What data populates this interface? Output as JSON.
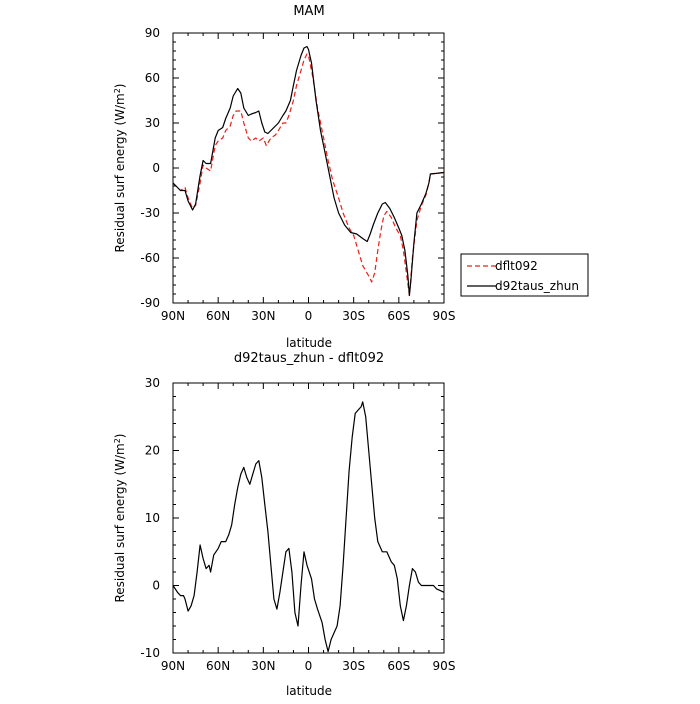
{
  "chart_data": [
    {
      "type": "line",
      "title": "MAM",
      "xlabel": "latitude",
      "ylabel": "Residual surf energy (W/m²)",
      "ylabel_main": "Residual surf energy (W/m",
      "ylabel_sup": "2",
      "ylabel_end": ")",
      "xlim": [
        90,
        -90
      ],
      "ylim": [
        -90,
        90
      ],
      "x_ticks": [
        90,
        60,
        30,
        0,
        -30,
        -60,
        -90
      ],
      "x_tick_labels": [
        "90N",
        "60N",
        "30N",
        "0",
        "30S",
        "60S",
        "90S"
      ],
      "y_ticks": [
        -90,
        -60,
        -30,
        0,
        30,
        60,
        90
      ],
      "y_tick_labels": [
        "-90",
        "-60",
        "-30",
        "0",
        "30",
        "60",
        "90"
      ],
      "legend_position": "right",
      "series": [
        {
          "name": "dflt092",
          "color": "#e8201a",
          "dash": "dashed",
          "points": [
            [
              90,
              -10
            ],
            [
              85,
              -15
            ],
            [
              82,
              -13
            ],
            [
              80,
              -20
            ],
            [
              77,
              -27
            ],
            [
              75,
              -25
            ],
            [
              72,
              -10
            ],
            [
              70,
              2
            ],
            [
              68,
              0
            ],
            [
              65,
              -2
            ],
            [
              62,
              15
            ],
            [
              60,
              18
            ],
            [
              57,
              20
            ],
            [
              55,
              25
            ],
            [
              52,
              28
            ],
            [
              50,
              35
            ],
            [
              48,
              38
            ],
            [
              45,
              38
            ],
            [
              43,
              30
            ],
            [
              40,
              20
            ],
            [
              38,
              18
            ],
            [
              35,
              20
            ],
            [
              33,
              18
            ],
            [
              30,
              20
            ],
            [
              28,
              15
            ],
            [
              25,
              20
            ],
            [
              22,
              22
            ],
            [
              20,
              25
            ],
            [
              17,
              30
            ],
            [
              15,
              30
            ],
            [
              13,
              35
            ],
            [
              10,
              45
            ],
            [
              8,
              55
            ],
            [
              5,
              65
            ],
            [
              3,
              72
            ],
            [
              1,
              76
            ],
            [
              0,
              75
            ],
            [
              -3,
              60
            ],
            [
              -6,
              40
            ],
            [
              -10,
              20
            ],
            [
              -13,
              5
            ],
            [
              -16,
              -8
            ],
            [
              -20,
              -20
            ],
            [
              -23,
              -30
            ],
            [
              -27,
              -40
            ],
            [
              -30,
              -45
            ],
            [
              -33,
              -55
            ],
            [
              -36,
              -65
            ],
            [
              -40,
              -72
            ],
            [
              -42,
              -76
            ],
            [
              -44,
              -70
            ],
            [
              -46,
              -55
            ],
            [
              -48,
              -42
            ],
            [
              -50,
              -32
            ],
            [
              -52,
              -29
            ],
            [
              -55,
              -33
            ],
            [
              -58,
              -40
            ],
            [
              -61,
              -45
            ],
            [
              -63,
              -55
            ],
            [
              -65,
              -70
            ],
            [
              -67,
              -85
            ],
            [
              -69,
              -60
            ],
            [
              -72,
              -35
            ],
            [
              -75,
              -25
            ],
            [
              -78,
              -18
            ],
            [
              -80,
              -10
            ],
            [
              -81,
              -4
            ],
            [
              -90,
              -3
            ]
          ]
        },
        {
          "name": "d92taus_zhun",
          "color": "#000000",
          "dash": "solid",
          "points": [
            [
              90,
              -10
            ],
            [
              87,
              -13
            ],
            [
              85,
              -15
            ],
            [
              82,
              -15
            ],
            [
              80,
              -22
            ],
            [
              77,
              -28
            ],
            [
              75,
              -24
            ],
            [
              72,
              -5
            ],
            [
              70,
              5
            ],
            [
              68,
              3
            ],
            [
              65,
              3
            ],
            [
              62,
              20
            ],
            [
              60,
              25
            ],
            [
              57,
              27
            ],
            [
              55,
              33
            ],
            [
              52,
              40
            ],
            [
              50,
              48
            ],
            [
              47,
              53
            ],
            [
              45,
              50
            ],
            [
              43,
              40
            ],
            [
              40,
              35
            ],
            [
              38,
              36
            ],
            [
              35,
              37
            ],
            [
              33,
              38
            ],
            [
              31,
              30
            ],
            [
              29,
              24
            ],
            [
              27,
              23
            ],
            [
              25,
              25
            ],
            [
              22,
              28
            ],
            [
              20,
              30
            ],
            [
              17,
              35
            ],
            [
              15,
              38
            ],
            [
              12,
              45
            ],
            [
              10,
              55
            ],
            [
              8,
              65
            ],
            [
              5,
              75
            ],
            [
              3,
              80
            ],
            [
              1,
              81
            ],
            [
              0,
              79
            ],
            [
              -2,
              70
            ],
            [
              -5,
              45
            ],
            [
              -8,
              25
            ],
            [
              -11,
              10
            ],
            [
              -14,
              -5
            ],
            [
              -17,
              -20
            ],
            [
              -20,
              -30
            ],
            [
              -24,
              -38
            ],
            [
              -28,
              -43
            ],
            [
              -32,
              -44
            ],
            [
              -36,
              -47
            ],
            [
              -39,
              -49
            ],
            [
              -41,
              -44
            ],
            [
              -43,
              -38
            ],
            [
              -46,
              -30
            ],
            [
              -49,
              -24
            ],
            [
              -51,
              -23
            ],
            [
              -54,
              -27
            ],
            [
              -57,
              -33
            ],
            [
              -60,
              -40
            ],
            [
              -62,
              -45
            ],
            [
              -64,
              -55
            ],
            [
              -66,
              -72
            ],
            [
              -67,
              -85
            ],
            [
              -68,
              -75
            ],
            [
              -70,
              -50
            ],
            [
              -72,
              -30
            ],
            [
              -75,
              -24
            ],
            [
              -78,
              -17
            ],
            [
              -80,
              -10
            ],
            [
              -81,
              -4
            ],
            [
              -90,
              -3
            ]
          ]
        }
      ]
    },
    {
      "type": "line",
      "title": "d92taus_zhun - dflt092",
      "xlabel": "latitude",
      "ylabel": "Residual surf energy (W/m²)",
      "ylabel_main": "Residual surf energy (W/m",
      "ylabel_sup": "2",
      "ylabel_end": ")",
      "xlim": [
        90,
        -90
      ],
      "ylim": [
        -10,
        30
      ],
      "x_ticks": [
        90,
        60,
        30,
        0,
        -30,
        -60,
        -90
      ],
      "x_tick_labels": [
        "90N",
        "60N",
        "30N",
        "0",
        "30S",
        "60S",
        "90S"
      ],
      "y_ticks": [
        -10,
        0,
        10,
        20,
        30
      ],
      "y_tick_labels": [
        "-10",
        "0",
        "10",
        "20",
        "30"
      ],
      "series": [
        {
          "color": "#000000",
          "dash": "solid",
          "points": [
            [
              90,
              0
            ],
            [
              87,
              -1
            ],
            [
              85,
              -1.5
            ],
            [
              83,
              -1.5
            ],
            [
              82,
              -2
            ],
            [
              80,
              -3.8
            ],
            [
              78,
              -3
            ],
            [
              76,
              -1.5
            ],
            [
              74,
              2
            ],
            [
              72,
              6
            ],
            [
              70,
              4
            ],
            [
              68,
              2.5
            ],
            [
              66,
              3
            ],
            [
              65,
              2
            ],
            [
              63,
              4.5
            ],
            [
              60,
              5.5
            ],
            [
              58,
              6.5
            ],
            [
              55,
              6.5
            ],
            [
              53,
              7.5
            ],
            [
              51,
              9
            ],
            [
              49,
              12
            ],
            [
              47,
              14.5
            ],
            [
              45,
              16.5
            ],
            [
              43,
              17.5
            ],
            [
              41,
              16
            ],
            [
              39,
              15
            ],
            [
              37,
              16.5
            ],
            [
              35,
              18
            ],
            [
              33,
              18.5
            ],
            [
              31,
              16
            ],
            [
              29,
              12
            ],
            [
              27,
              8
            ],
            [
              25,
              3
            ],
            [
              23,
              -2
            ],
            [
              21,
              -3.5
            ],
            [
              19,
              -1
            ],
            [
              17,
              2
            ],
            [
              15,
              5
            ],
            [
              13,
              5.5
            ],
            [
              11,
              2
            ],
            [
              9,
              -4
            ],
            [
              7,
              -6
            ],
            [
              5,
              0
            ],
            [
              3,
              5
            ],
            [
              1,
              3
            ],
            [
              -2,
              1
            ],
            [
              -4,
              -2
            ],
            [
              -6,
              -3.5
            ],
            [
              -9,
              -5.5
            ],
            [
              -11,
              -8
            ],
            [
              -13,
              -9.8
            ],
            [
              -15,
              -8
            ],
            [
              -17,
              -7
            ],
            [
              -19,
              -6
            ],
            [
              -21,
              -3
            ],
            [
              -23,
              3
            ],
            [
              -25,
              10
            ],
            [
              -27,
              17
            ],
            [
              -29,
              22
            ],
            [
              -31,
              25.5
            ],
            [
              -33,
              26
            ],
            [
              -35,
              26.5
            ],
            [
              -36,
              27.2
            ],
            [
              -38,
              25
            ],
            [
              -40,
              20
            ],
            [
              -42,
              15
            ],
            [
              -44,
              10
            ],
            [
              -46,
              6.5
            ],
            [
              -49,
              5
            ],
            [
              -52,
              5
            ],
            [
              -55,
              3.5
            ],
            [
              -57,
              3
            ],
            [
              -59,
              1
            ],
            [
              -61,
              -3
            ],
            [
              -63,
              -5.2
            ],
            [
              -65,
              -3
            ],
            [
              -67,
              0
            ],
            [
              -69,
              2.5
            ],
            [
              -71,
              2
            ],
            [
              -73,
              0.5
            ],
            [
              -75,
              0
            ],
            [
              -78,
              0
            ],
            [
              -80,
              0
            ],
            [
              -83,
              0
            ],
            [
              -85,
              -0.5
            ],
            [
              -87,
              -0.7
            ],
            [
              -90,
              -1
            ]
          ]
        }
      ]
    }
  ]
}
